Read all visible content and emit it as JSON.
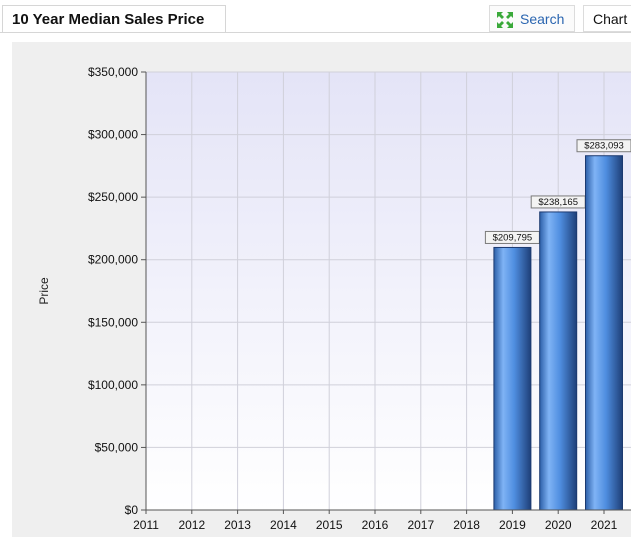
{
  "header": {
    "title": "10 Year Median Sales Price",
    "search_label": "Search",
    "chart_label": "Chart"
  },
  "icons": {
    "search": "expand-arrows-icon"
  },
  "colors": {
    "accent": "#2a65b0",
    "bar": "#3f7fd6",
    "plot_bg_top": "#e6e6fa",
    "grid": "#cfcfd8"
  },
  "chart_data": {
    "type": "bar",
    "title": "10 Year Median Sales Price",
    "xlabel": "",
    "ylabel": "Price",
    "categories": [
      "2011",
      "2012",
      "2013",
      "2014",
      "2015",
      "2016",
      "2017",
      "2018",
      "2019",
      "2020",
      "2021"
    ],
    "values": [
      0,
      0,
      0,
      0,
      0,
      0,
      0,
      0,
      209795,
      238165,
      283093
    ],
    "data_labels": [
      "",
      "",
      "",
      "",
      "",
      "",
      "",
      "",
      "$209,795",
      "$238,165",
      "$283,093"
    ],
    "ylim": [
      0,
      350000
    ],
    "yticks": [
      0,
      50000,
      100000,
      150000,
      200000,
      250000,
      300000,
      350000
    ],
    "ytick_labels": [
      "$0",
      "$50,000",
      "$100,000",
      "$150,000",
      "$200,000",
      "$250,000",
      "$300,000",
      "$350,000"
    ],
    "grid": true
  }
}
